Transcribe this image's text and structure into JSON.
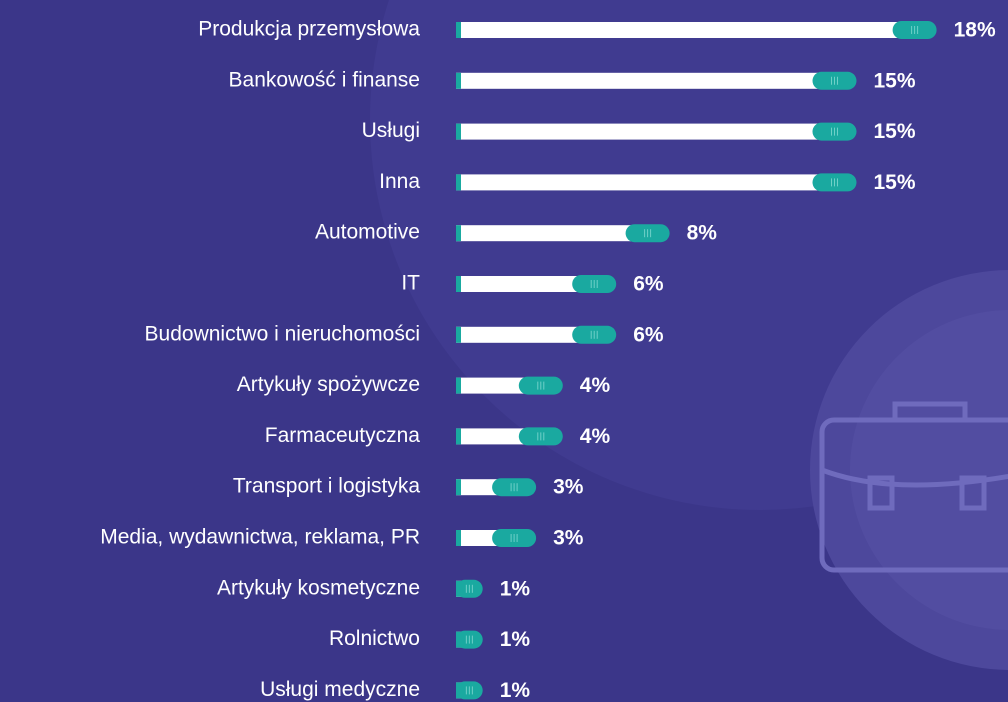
{
  "chart_data": {
    "type": "bar",
    "orientation": "horizontal",
    "categories": [
      "Produkcja przemysłowa",
      "Bankowość i finanse",
      "Usługi",
      "Inna",
      "Automotive",
      "IT",
      "Budownictwo i nieruchomości",
      "Artykuły spożywcze",
      "Farmaceutyczna",
      "Transport i logistyka",
      "Media, wydawnictwa, reklama, PR",
      "Artykuły kosmetyczne",
      "Rolnictwo",
      "Usługi medyczne"
    ],
    "values": [
      18,
      15,
      15,
      15,
      8,
      6,
      6,
      4,
      4,
      3,
      3,
      1,
      1,
      1
    ],
    "value_labels": [
      "18%",
      "15%",
      "15%",
      "15%",
      "8%",
      "6%",
      "6%",
      "4%",
      "4%",
      "3%",
      "3%",
      "1%",
      "1%",
      "1%"
    ],
    "color": "#ffffff",
    "accent_color": "#1aa9a0"
  }
}
